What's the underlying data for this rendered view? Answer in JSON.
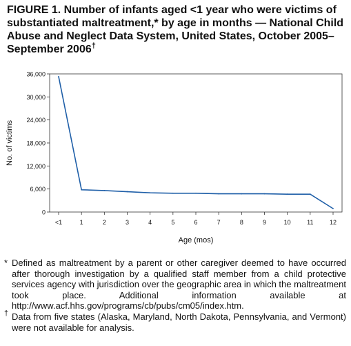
{
  "title": "FIGURE 1. Number of infants aged <1 year who were victims of substantiated maltreatment,* by age in months — National Child Abuse and Neglect Data System, United States, October 2005–September 2006",
  "title_mark": "†",
  "chart_data": {
    "type": "line",
    "title": "",
    "xlabel": "Age (mos)",
    "ylabel": "No. of victims",
    "categories": [
      "<1",
      "1",
      "2",
      "3",
      "4",
      "5",
      "6",
      "7",
      "8",
      "9",
      "10",
      "11",
      "12"
    ],
    "series": [
      {
        "values": [
          35300,
          5800,
          5600,
          5300,
          5000,
          4900,
          4900,
          4750,
          4750,
          4750,
          4650,
          4650,
          900
        ]
      }
    ],
    "ylim": [
      0,
      36000
    ],
    "yticks": [
      0,
      6000,
      12000,
      18000,
      24000,
      30000,
      36000
    ],
    "ytick_labels": [
      "0",
      "6,000",
      "12,000",
      "18,000",
      "24,000",
      "30,000",
      "36,000"
    ],
    "grid": false,
    "line_color": "#1f5fa8"
  },
  "footnotes": [
    {
      "mark": "*",
      "text": "Defined as maltreatment by a parent or other caregiver deemed to have occurred after thorough investigation by a qualified staff member from a child protective services agency with jurisdiction over the geographic area in which the maltreatment took place. Additional information available at http://www.acf.hhs.gov/programs/cb/pubs/cm05/index.htm."
    },
    {
      "mark": "†",
      "text": "Data from five states (Alaska, Maryland, North Dakota, Pennsylvania, and Vermont) were not available for analysis."
    }
  ]
}
